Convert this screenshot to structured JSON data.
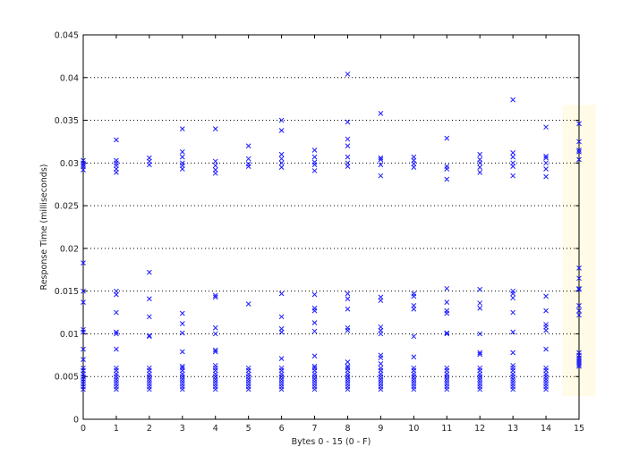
{
  "chart_data": {
    "type": "scatter",
    "title": "",
    "xlabel": "Bytes 0 - 15 (0 - F)",
    "ylabel": "Response Time (milliseconds)",
    "xlim": [
      0,
      15
    ],
    "ylim": [
      0,
      0.045
    ],
    "x_ticks": [
      "0",
      "1",
      "2",
      "3",
      "4",
      "5",
      "6",
      "7",
      "8",
      "9",
      "10",
      "11",
      "12",
      "13",
      "14",
      "15"
    ],
    "y_ticks": [
      "0",
      "0.005",
      "0.01",
      "0.015",
      "0.02",
      "0.025",
      "0.03",
      "0.035",
      "0.04",
      "0.045"
    ],
    "y_tick_values": [
      0,
      0.005,
      0.01,
      0.015,
      0.02,
      0.025,
      0.03,
      0.035,
      0.04,
      0.045
    ],
    "grid": "horizontal dotted",
    "marker": "x",
    "marker_color": "#1a1aff",
    "highlight": {
      "x_range": [
        14.5,
        15.5
      ],
      "y_range": [
        0.0027,
        0.0368
      ],
      "color": "#fffbe6"
    },
    "points": [
      [
        0,
        0.0303
      ],
      [
        0,
        0.03
      ],
      [
        0,
        0.0298
      ],
      [
        0,
        0.0296
      ],
      [
        0,
        0.0292
      ],
      [
        0,
        0.0183
      ],
      [
        0,
        0.015
      ],
      [
        0,
        0.0137
      ],
      [
        0,
        0.0105
      ],
      [
        0,
        0.0102
      ],
      [
        0,
        0.0082
      ],
      [
        0,
        0.007
      ],
      [
        0,
        0.006
      ],
      [
        0,
        0.0057
      ],
      [
        0,
        0.0053
      ],
      [
        0,
        0.005
      ],
      [
        0,
        0.0047
      ],
      [
        0,
        0.0044
      ],
      [
        0,
        0.0041
      ],
      [
        0,
        0.0038
      ],
      [
        0,
        0.0035
      ],
      [
        1,
        0.0327
      ],
      [
        1,
        0.0303
      ],
      [
        1,
        0.03
      ],
      [
        1,
        0.0297
      ],
      [
        1,
        0.0293
      ],
      [
        1,
        0.0289
      ],
      [
        1,
        0.015
      ],
      [
        1,
        0.0146
      ],
      [
        1,
        0.0125
      ],
      [
        1,
        0.0102
      ],
      [
        1,
        0.01
      ],
      [
        1,
        0.0082
      ],
      [
        1,
        0.006
      ],
      [
        1,
        0.0057
      ],
      [
        1,
        0.0053
      ],
      [
        1,
        0.005
      ],
      [
        1,
        0.0047
      ],
      [
        1,
        0.0044
      ],
      [
        1,
        0.0041
      ],
      [
        1,
        0.0038
      ],
      [
        1,
        0.0035
      ],
      [
        2,
        0.0306
      ],
      [
        2,
        0.0302
      ],
      [
        2,
        0.0298
      ],
      [
        2,
        0.0172
      ],
      [
        2,
        0.0141
      ],
      [
        2,
        0.012
      ],
      [
        2,
        0.0098
      ],
      [
        2,
        0.0097
      ],
      [
        2,
        0.006
      ],
      [
        2,
        0.0057
      ],
      [
        2,
        0.0053
      ],
      [
        2,
        0.005
      ],
      [
        2,
        0.0047
      ],
      [
        2,
        0.0044
      ],
      [
        2,
        0.0041
      ],
      [
        2,
        0.0038
      ],
      [
        2,
        0.0035
      ],
      [
        3,
        0.034
      ],
      [
        3,
        0.0313
      ],
      [
        3,
        0.0307
      ],
      [
        3,
        0.03
      ],
      [
        3,
        0.0297
      ],
      [
        3,
        0.0293
      ],
      [
        3,
        0.0124
      ],
      [
        3,
        0.0112
      ],
      [
        3,
        0.0101
      ],
      [
        3,
        0.0079
      ],
      [
        3,
        0.0062
      ],
      [
        3,
        0.006
      ],
      [
        3,
        0.0057
      ],
      [
        3,
        0.0053
      ],
      [
        3,
        0.005
      ],
      [
        3,
        0.0047
      ],
      [
        3,
        0.0044
      ],
      [
        3,
        0.0041
      ],
      [
        3,
        0.0038
      ],
      [
        3,
        0.0035
      ],
      [
        4,
        0.034
      ],
      [
        4,
        0.0302
      ],
      [
        4,
        0.0297
      ],
      [
        4,
        0.0292
      ],
      [
        4,
        0.0288
      ],
      [
        4,
        0.0145
      ],
      [
        4,
        0.0143
      ],
      [
        4,
        0.0107
      ],
      [
        4,
        0.01
      ],
      [
        4,
        0.0081
      ],
      [
        4,
        0.0079
      ],
      [
        4,
        0.0063
      ],
      [
        4,
        0.006
      ],
      [
        4,
        0.0057
      ],
      [
        4,
        0.0053
      ],
      [
        4,
        0.005
      ],
      [
        4,
        0.0047
      ],
      [
        4,
        0.0044
      ],
      [
        4,
        0.0041
      ],
      [
        4,
        0.0038
      ],
      [
        4,
        0.0035
      ],
      [
        5,
        0.032
      ],
      [
        5,
        0.0305
      ],
      [
        5,
        0.0299
      ],
      [
        5,
        0.0296
      ],
      [
        5,
        0.0135
      ],
      [
        5,
        0.006
      ],
      [
        5,
        0.0057
      ],
      [
        5,
        0.0053
      ],
      [
        5,
        0.005
      ],
      [
        5,
        0.0047
      ],
      [
        5,
        0.0044
      ],
      [
        5,
        0.0041
      ],
      [
        5,
        0.0038
      ],
      [
        5,
        0.0035
      ],
      [
        6,
        0.035
      ],
      [
        6,
        0.0338
      ],
      [
        6,
        0.031
      ],
      [
        6,
        0.0305
      ],
      [
        6,
        0.03
      ],
      [
        6,
        0.0295
      ],
      [
        6,
        0.0147
      ],
      [
        6,
        0.012
      ],
      [
        6,
        0.0106
      ],
      [
        6,
        0.0102
      ],
      [
        6,
        0.0071
      ],
      [
        6,
        0.006
      ],
      [
        6,
        0.0057
      ],
      [
        6,
        0.0053
      ],
      [
        6,
        0.005
      ],
      [
        6,
        0.0047
      ],
      [
        6,
        0.0044
      ],
      [
        6,
        0.0041
      ],
      [
        6,
        0.0038
      ],
      [
        6,
        0.0035
      ],
      [
        7,
        0.0315
      ],
      [
        7,
        0.0307
      ],
      [
        7,
        0.0301
      ],
      [
        7,
        0.0298
      ],
      [
        7,
        0.0291
      ],
      [
        7,
        0.0146
      ],
      [
        7,
        0.013
      ],
      [
        7,
        0.0127
      ],
      [
        7,
        0.0113
      ],
      [
        7,
        0.0103
      ],
      [
        7,
        0.0074
      ],
      [
        7,
        0.0062
      ],
      [
        7,
        0.006
      ],
      [
        7,
        0.0057
      ],
      [
        7,
        0.0053
      ],
      [
        7,
        0.005
      ],
      [
        7,
        0.0047
      ],
      [
        7,
        0.0044
      ],
      [
        7,
        0.0041
      ],
      [
        7,
        0.0038
      ],
      [
        7,
        0.0035
      ],
      [
        8,
        0.0404
      ],
      [
        8,
        0.0348
      ],
      [
        8,
        0.0328
      ],
      [
        8,
        0.032
      ],
      [
        8,
        0.0307
      ],
      [
        8,
        0.03
      ],
      [
        8,
        0.0296
      ],
      [
        8,
        0.0147
      ],
      [
        8,
        0.0141
      ],
      [
        8,
        0.0129
      ],
      [
        8,
        0.0107
      ],
      [
        8,
        0.0104
      ],
      [
        8,
        0.0067
      ],
      [
        8,
        0.0062
      ],
      [
        8,
        0.006
      ],
      [
        8,
        0.0057
      ],
      [
        8,
        0.0053
      ],
      [
        8,
        0.005
      ],
      [
        8,
        0.0047
      ],
      [
        8,
        0.0044
      ],
      [
        8,
        0.0041
      ],
      [
        8,
        0.0038
      ],
      [
        8,
        0.0035
      ],
      [
        9,
        0.0358
      ],
      [
        9,
        0.0306
      ],
      [
        9,
        0.0304
      ],
      [
        9,
        0.0298
      ],
      [
        9,
        0.0285
      ],
      [
        9,
        0.0143
      ],
      [
        9,
        0.0139
      ],
      [
        9,
        0.0108
      ],
      [
        9,
        0.0104
      ],
      [
        9,
        0.01
      ],
      [
        9,
        0.0075
      ],
      [
        9,
        0.0072
      ],
      [
        9,
        0.0065
      ],
      [
        9,
        0.006
      ],
      [
        9,
        0.0057
      ],
      [
        9,
        0.0053
      ],
      [
        9,
        0.005
      ],
      [
        9,
        0.0047
      ],
      [
        9,
        0.0044
      ],
      [
        9,
        0.0041
      ],
      [
        9,
        0.0038
      ],
      [
        9,
        0.0035
      ],
      [
        10,
        0.0307
      ],
      [
        10,
        0.0303
      ],
      [
        10,
        0.0299
      ],
      [
        10,
        0.0295
      ],
      [
        10,
        0.0147
      ],
      [
        10,
        0.0144
      ],
      [
        10,
        0.0133
      ],
      [
        10,
        0.0129
      ],
      [
        10,
        0.0097
      ],
      [
        10,
        0.0073
      ],
      [
        10,
        0.006
      ],
      [
        10,
        0.0057
      ],
      [
        10,
        0.0053
      ],
      [
        10,
        0.005
      ],
      [
        10,
        0.0047
      ],
      [
        10,
        0.0044
      ],
      [
        10,
        0.0041
      ],
      [
        10,
        0.0038
      ],
      [
        10,
        0.0035
      ],
      [
        11,
        0.0329
      ],
      [
        11,
        0.0296
      ],
      [
        11,
        0.0293
      ],
      [
        11,
        0.0281
      ],
      [
        11,
        0.0153
      ],
      [
        11,
        0.0137
      ],
      [
        11,
        0.0127
      ],
      [
        11,
        0.0124
      ],
      [
        11,
        0.0101
      ],
      [
        11,
        0.01
      ],
      [
        11,
        0.006
      ],
      [
        11,
        0.0057
      ],
      [
        11,
        0.0053
      ],
      [
        11,
        0.005
      ],
      [
        11,
        0.0047
      ],
      [
        11,
        0.0044
      ],
      [
        11,
        0.0041
      ],
      [
        11,
        0.0038
      ],
      [
        11,
        0.0035
      ],
      [
        12,
        0.031
      ],
      [
        12,
        0.0304
      ],
      [
        12,
        0.03
      ],
      [
        12,
        0.0295
      ],
      [
        12,
        0.0289
      ],
      [
        12,
        0.0152
      ],
      [
        12,
        0.0136
      ],
      [
        12,
        0.013
      ],
      [
        12,
        0.01
      ],
      [
        12,
        0.0078
      ],
      [
        12,
        0.0076
      ],
      [
        12,
        0.006
      ],
      [
        12,
        0.0057
      ],
      [
        12,
        0.0053
      ],
      [
        12,
        0.005
      ],
      [
        12,
        0.0047
      ],
      [
        12,
        0.0044
      ],
      [
        12,
        0.0041
      ],
      [
        12,
        0.0038
      ],
      [
        12,
        0.0035
      ],
      [
        13,
        0.0374
      ],
      [
        13,
        0.0312
      ],
      [
        13,
        0.0307
      ],
      [
        13,
        0.03
      ],
      [
        13,
        0.0296
      ],
      [
        13,
        0.0285
      ],
      [
        13,
        0.015
      ],
      [
        13,
        0.0147
      ],
      [
        13,
        0.0142
      ],
      [
        13,
        0.0125
      ],
      [
        13,
        0.0102
      ],
      [
        13,
        0.0078
      ],
      [
        13,
        0.0063
      ],
      [
        13,
        0.006
      ],
      [
        13,
        0.0057
      ],
      [
        13,
        0.0053
      ],
      [
        13,
        0.005
      ],
      [
        13,
        0.0047
      ],
      [
        13,
        0.0044
      ],
      [
        13,
        0.0041
      ],
      [
        13,
        0.0038
      ],
      [
        13,
        0.0035
      ],
      [
        14,
        0.0342
      ],
      [
        14,
        0.0308
      ],
      [
        14,
        0.0306
      ],
      [
        14,
        0.03
      ],
      [
        14,
        0.0293
      ],
      [
        14,
        0.0284
      ],
      [
        14,
        0.0144
      ],
      [
        14,
        0.0127
      ],
      [
        14,
        0.0111
      ],
      [
        14,
        0.0108
      ],
      [
        14,
        0.0104
      ],
      [
        14,
        0.0082
      ],
      [
        14,
        0.006
      ],
      [
        14,
        0.0057
      ],
      [
        14,
        0.0053
      ],
      [
        14,
        0.005
      ],
      [
        14,
        0.0047
      ],
      [
        14,
        0.0044
      ],
      [
        14,
        0.0041
      ],
      [
        14,
        0.0038
      ],
      [
        14,
        0.0035
      ],
      [
        15,
        0.0346
      ],
      [
        15,
        0.0325
      ],
      [
        15,
        0.0315
      ],
      [
        15,
        0.0313
      ],
      [
        15,
        0.0304
      ],
      [
        15,
        0.0177
      ],
      [
        15,
        0.0165
      ],
      [
        15,
        0.0153
      ],
      [
        15,
        0.0152
      ],
      [
        15,
        0.0133
      ],
      [
        15,
        0.0127
      ],
      [
        15,
        0.0122
      ],
      [
        15,
        0.0078
      ],
      [
        15,
        0.0075
      ],
      [
        15,
        0.0072
      ],
      [
        15,
        0.007
      ],
      [
        15,
        0.0068
      ],
      [
        15,
        0.0066
      ],
      [
        15,
        0.0064
      ],
      [
        15,
        0.0062
      ]
    ]
  }
}
